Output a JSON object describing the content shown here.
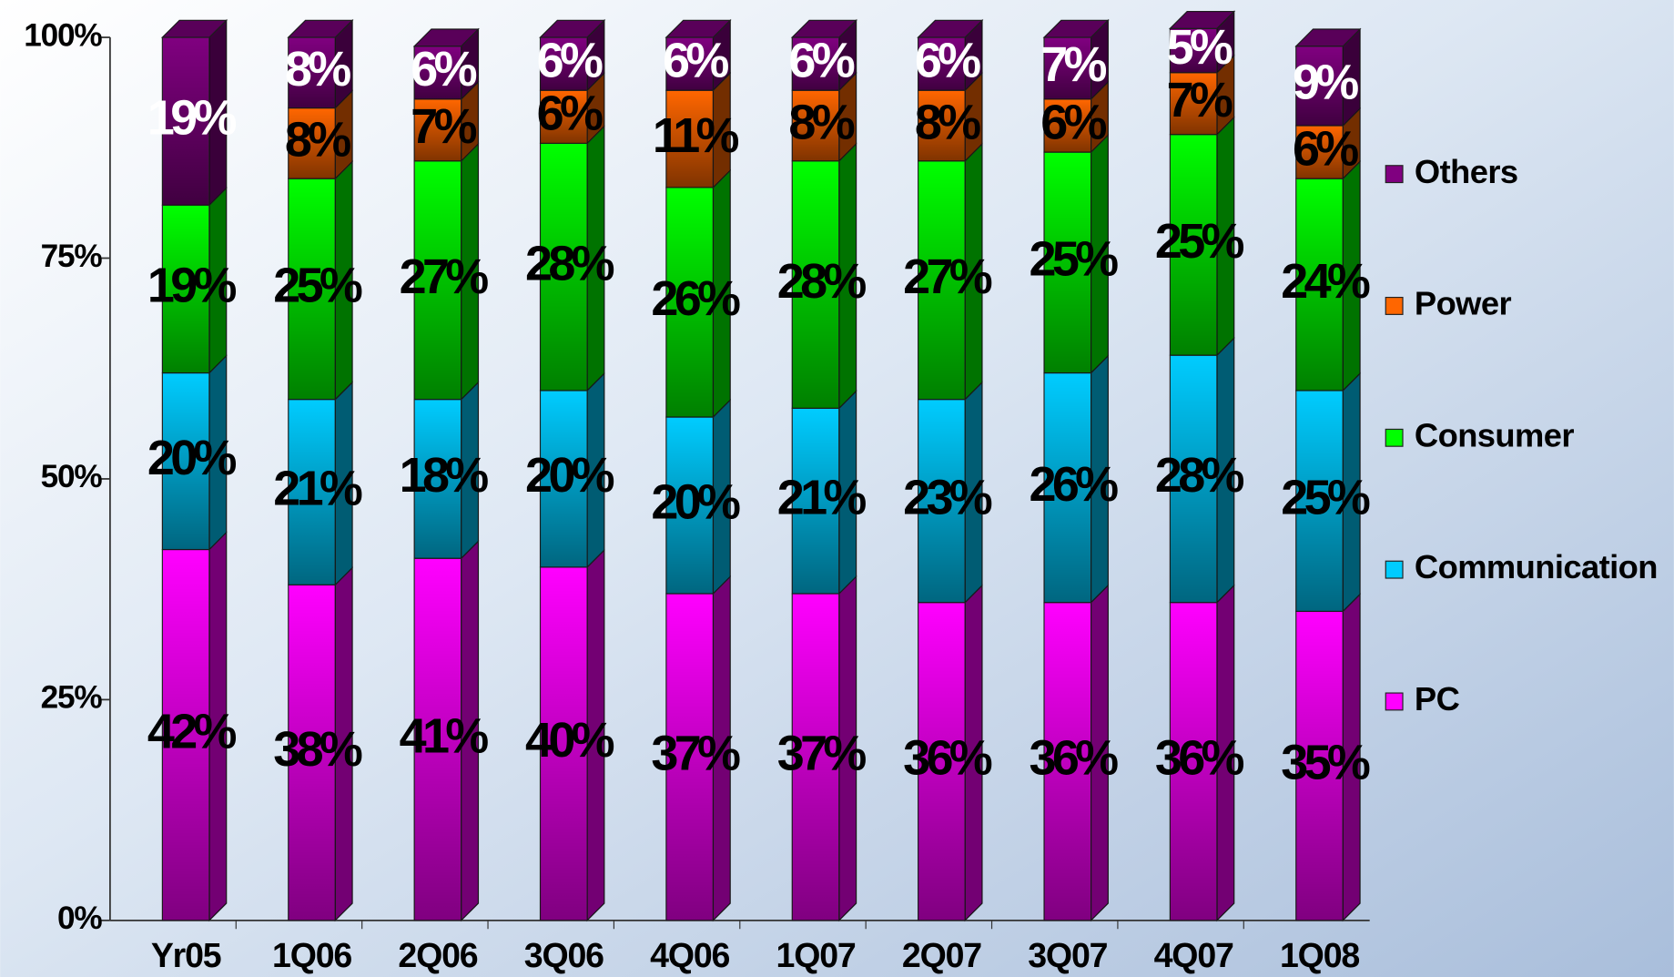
{
  "chart_data": {
    "type": "stacked_bar",
    "categories": [
      "Yr05",
      "1Q06",
      "2Q06",
      "3Q06",
      "4Q06",
      "1Q07",
      "2Q07",
      "3Q07",
      "4Q07",
      "1Q08"
    ],
    "series": [
      {
        "name": "PC",
        "color": "#ff00ff",
        "label_color": "#000000",
        "values": [
          42,
          38,
          41,
          40,
          37,
          37,
          36,
          36,
          36,
          35
        ],
        "value_labels": [
          "42%",
          "38%",
          "41%",
          "40%",
          "37%",
          "37%",
          "36%",
          "36%",
          "36%",
          "35%"
        ]
      },
      {
        "name": "Communication",
        "color": "#00ccff",
        "label_color": "#000000",
        "values": [
          20,
          21,
          18,
          20,
          20,
          21,
          23,
          26,
          28,
          25
        ],
        "value_labels": [
          "20%",
          "21%",
          "18%",
          "20%",
          "20%",
          "21%",
          "23%",
          "26%",
          "28%",
          "25%"
        ]
      },
      {
        "name": "Consumer",
        "color": "#00ff00",
        "label_color": "#000000",
        "values": [
          19,
          25,
          27,
          28,
          26,
          28,
          27,
          25,
          25,
          24
        ],
        "value_labels": [
          "19%",
          "25%",
          "27%",
          "28%",
          "26%",
          "28%",
          "27%",
          "25%",
          "25%",
          "24%"
        ]
      },
      {
        "name": "Power",
        "color": "#ff6600",
        "label_color": "#000000",
        "values": [
          null,
          8,
          7,
          6,
          11,
          8,
          8,
          6,
          7,
          6
        ],
        "value_labels": [
          null,
          "8%",
          "7%",
          "6%",
          "11%",
          "8%",
          "8%",
          "6%",
          "7%",
          "6%"
        ]
      },
      {
        "name": "Others",
        "color": "#800080",
        "label_color": "#ffffff",
        "values": [
          19,
          8,
          6,
          6,
          6,
          6,
          6,
          7,
          5,
          9
        ],
        "value_labels": [
          "19%",
          "8%",
          "6%",
          "6%",
          "6%",
          "6%",
          "6%",
          "7%",
          "5%",
          "9%"
        ]
      }
    ],
    "ylim": [
      0,
      100
    ],
    "yticks": [
      {
        "value": 0,
        "label": "0%"
      },
      {
        "value": 25,
        "label": "25%"
      },
      {
        "value": 50,
        "label": "50%"
      },
      {
        "value": 75,
        "label": "75%"
      },
      {
        "value": 100,
        "label": "100%"
      }
    ],
    "legend": "right"
  }
}
